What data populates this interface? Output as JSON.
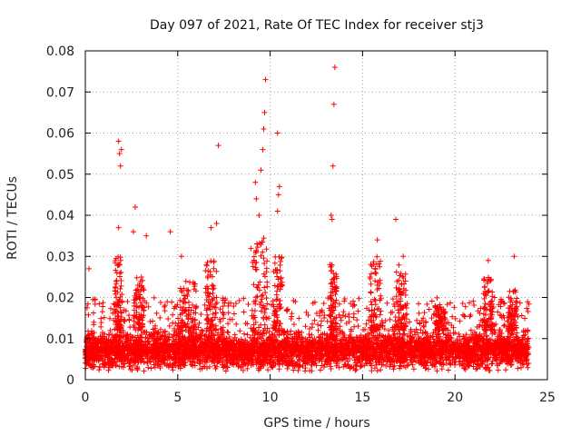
{
  "chart_data": {
    "type": "scatter",
    "title": "Day 097 of 2021, Rate Of TEC Index for receiver stj3",
    "xlabel": "GPS time / hours",
    "ylabel": "ROTI / TECUs",
    "xlim": [
      0,
      25
    ],
    "ylim": [
      0,
      0.08
    ],
    "xticks": [
      0,
      5,
      10,
      15,
      20,
      25
    ],
    "xtick_labels": [
      "0",
      "5",
      "10",
      "15",
      "20",
      "25"
    ],
    "yticks": [
      0,
      0.01,
      0.02,
      0.03,
      0.04,
      0.05,
      0.06,
      0.07,
      0.08
    ],
    "ytick_labels": [
      "0",
      "0.01",
      "0.02",
      "0.03",
      "0.04",
      "0.05",
      "0.06",
      "0.07",
      "0.08"
    ],
    "grid": true,
    "marker": "+",
    "series": [
      {
        "name": "ROTI",
        "color": "#ff0000",
        "x_range": [
          0,
          24
        ],
        "typical_band": [
          0.002,
          0.02
        ],
        "typical_center": 0.007,
        "outliers": [
          [
            0.2,
            0.027
          ],
          [
            1.8,
            0.058
          ],
          [
            1.85,
            0.055
          ],
          [
            1.9,
            0.052
          ],
          [
            1.95,
            0.056
          ],
          [
            1.8,
            0.037
          ],
          [
            2.7,
            0.042
          ],
          [
            2.6,
            0.036
          ],
          [
            3.3,
            0.035
          ],
          [
            4.6,
            0.036
          ],
          [
            5.2,
            0.03
          ],
          [
            6.8,
            0.037
          ],
          [
            7.2,
            0.057
          ],
          [
            7.1,
            0.038
          ],
          [
            9.2,
            0.048
          ],
          [
            9.25,
            0.044
          ],
          [
            9.5,
            0.051
          ],
          [
            9.6,
            0.056
          ],
          [
            9.65,
            0.061
          ],
          [
            9.7,
            0.065
          ],
          [
            9.75,
            0.073
          ],
          [
            9.4,
            0.04
          ],
          [
            10.4,
            0.06
          ],
          [
            10.5,
            0.047
          ],
          [
            10.45,
            0.045
          ],
          [
            10.4,
            0.041
          ],
          [
            13.3,
            0.04
          ],
          [
            13.4,
            0.052
          ],
          [
            13.45,
            0.067
          ],
          [
            13.5,
            0.076
          ],
          [
            13.35,
            0.039
          ],
          [
            15.8,
            0.034
          ],
          [
            16.8,
            0.039
          ],
          [
            17.2,
            0.03
          ],
          [
            21.8,
            0.029
          ],
          [
            23.2,
            0.03
          ]
        ]
      }
    ]
  }
}
